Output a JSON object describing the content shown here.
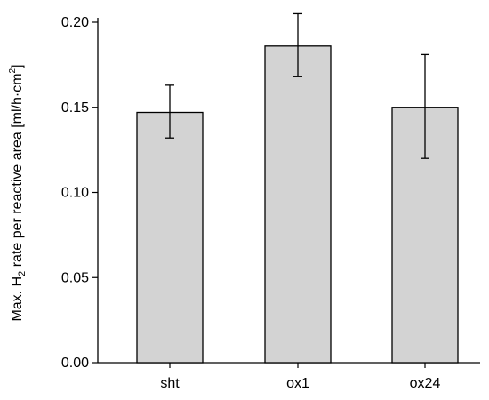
{
  "chart_data": {
    "type": "bar",
    "categories": [
      "sht",
      "ox1",
      "ox24"
    ],
    "values": [
      0.147,
      0.186,
      0.15
    ],
    "errors_low": [
      0.132,
      0.168,
      0.12
    ],
    "errors_high": [
      0.163,
      0.205,
      0.181
    ],
    "ylabel": {
      "prefix": "Max. H",
      "subscript": "2",
      "middle": " rate per reactive area [ml/h·cm",
      "superscript": "2",
      "suffix": "]"
    },
    "yticks": [
      "0.00",
      "0.05",
      "0.10",
      "0.15",
      "0.20"
    ],
    "ylim": [
      0,
      0.21
    ],
    "bar_color": "#d3d3d3",
    "grid": false,
    "legend": "none"
  }
}
